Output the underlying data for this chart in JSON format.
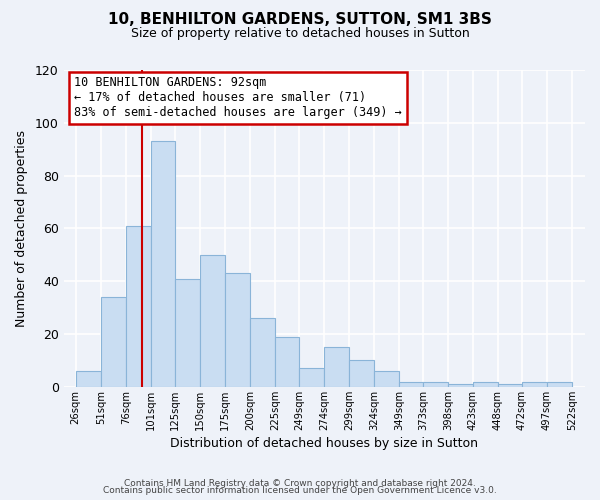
{
  "title": "10, BENHILTON GARDENS, SUTTON, SM1 3BS",
  "subtitle": "Size of property relative to detached houses in Sutton",
  "xlabel": "Distribution of detached houses by size in Sutton",
  "ylabel": "Number of detached properties",
  "bar_left_edges": [
    26,
    51,
    76,
    101,
    125,
    150,
    175,
    200,
    225,
    249,
    274,
    299,
    324,
    349,
    373,
    398,
    423,
    448,
    472,
    497
  ],
  "bar_widths": [
    25,
    25,
    25,
    24,
    25,
    25,
    25,
    25,
    24,
    25,
    25,
    25,
    25,
    24,
    25,
    25,
    25,
    24,
    25,
    25
  ],
  "bar_heights": [
    6,
    34,
    61,
    93,
    41,
    50,
    43,
    26,
    19,
    7,
    15,
    10,
    6,
    2,
    2,
    1,
    2,
    1,
    2,
    2
  ],
  "bar_color": "#c9ddf2",
  "bar_edgecolor": "#8ab4d8",
  "tick_labels": [
    "26sqm",
    "51sqm",
    "76sqm",
    "101sqm",
    "125sqm",
    "150sqm",
    "175sqm",
    "200sqm",
    "225sqm",
    "249sqm",
    "274sqm",
    "299sqm",
    "324sqm",
    "349sqm",
    "373sqm",
    "398sqm",
    "423sqm",
    "448sqm",
    "472sqm",
    "497sqm",
    "522sqm"
  ],
  "tick_positions": [
    26,
    51,
    76,
    101,
    125,
    150,
    175,
    200,
    225,
    249,
    274,
    299,
    324,
    349,
    373,
    398,
    423,
    448,
    472,
    497,
    522
  ],
  "ylim": [
    0,
    120
  ],
  "yticks": [
    0,
    20,
    40,
    60,
    80,
    100,
    120
  ],
  "xlim_left": 14,
  "xlim_right": 535,
  "property_line_x": 92,
  "annotation_title": "10 BENHILTON GARDENS: 92sqm",
  "annotation_line1": "← 17% of detached houses are smaller (71)",
  "annotation_line2": "83% of semi-detached houses are larger (349) →",
  "footer1": "Contains HM Land Registry data © Crown copyright and database right 2024.",
  "footer2": "Contains public sector information licensed under the Open Government Licence v3.0.",
  "background_color": "#eef2f9",
  "grid_color": "#ffffff",
  "line_color": "#cc0000",
  "ann_box_facecolor": "#ffffff",
  "ann_box_edgecolor": "#cc0000"
}
